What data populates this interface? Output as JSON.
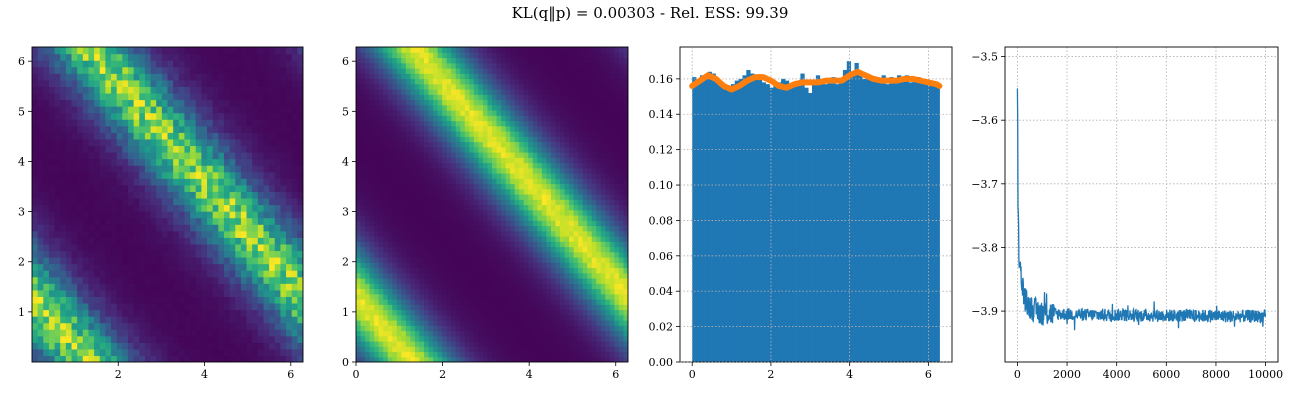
{
  "figure": {
    "title": "KL(q‖p) = 0.00303 - Rel. ESS: 99.39"
  },
  "colors": {
    "bar": "#1f77b4",
    "density": "#ff7f0e",
    "loss": "#1f77b4",
    "grid": "#b0b0b0",
    "colormap": "viridis"
  },
  "chart_data": [
    {
      "type": "heatmap",
      "description_of_pattern": "two diagonal ridges of high density",
      "xlim": [
        0,
        6.2832
      ],
      "ylim": [
        0,
        6.2832
      ],
      "xticks": [
        2,
        4,
        6
      ],
      "yticks": [
        1,
        2,
        3,
        4,
        5,
        6
      ],
      "bins": 48,
      "noisy": true,
      "colormap": "viridis"
    },
    {
      "type": "heatmap",
      "xlim": [
        0,
        6.2832
      ],
      "ylim": [
        0,
        6.2832
      ],
      "xticks": [
        0,
        2,
        4,
        6
      ],
      "yticks": [
        0,
        1,
        2,
        3,
        4,
        5,
        6
      ],
      "smooth": true,
      "colormap": "viridis"
    },
    {
      "type": "bar",
      "xlim": [
        -0.31,
        6.6
      ],
      "ylim": [
        0,
        0.178
      ],
      "xticks": [
        0,
        2,
        4,
        6
      ],
      "yticks": [
        0.0,
        0.02,
        0.04,
        0.06,
        0.08,
        0.1,
        0.12,
        0.14,
        0.16
      ],
      "ytick_labels": [
        "0.00",
        "0.02",
        "0.04",
        "0.06",
        "0.08",
        "0.10",
        "0.12",
        "0.14",
        "0.16"
      ],
      "bin_range": [
        0,
        6.2832
      ],
      "bar_values": [
        0.161,
        0.159,
        0.162,
        0.16,
        0.164,
        0.163,
        0.158,
        0.157,
        0.154,
        0.155,
        0.157,
        0.159,
        0.16,
        0.162,
        0.165,
        0.163,
        0.161,
        0.16,
        0.158,
        0.157,
        0.155,
        0.156,
        0.158,
        0.16,
        0.159,
        0.157,
        0.156,
        0.158,
        0.163,
        0.155,
        0.152,
        0.157,
        0.162,
        0.158,
        0.157,
        0.16,
        0.161,
        0.157,
        0.16,
        0.165,
        0.17,
        0.162,
        0.169,
        0.163,
        0.16,
        0.161,
        0.159,
        0.16,
        0.158,
        0.162,
        0.157,
        0.161,
        0.159,
        0.162,
        0.16,
        0.162,
        0.158,
        0.16,
        0.161,
        0.159,
        0.157,
        0.158,
        0.157,
        0.156
      ],
      "density_x": [
        0,
        0.2,
        0.4,
        0.6,
        0.8,
        1.0,
        1.2,
        1.4,
        1.6,
        1.8,
        2.0,
        2.2,
        2.4,
        2.6,
        2.8,
        3.0,
        3.2,
        3.4,
        3.6,
        3.8,
        4.0,
        4.2,
        4.4,
        4.6,
        4.8,
        5.0,
        5.2,
        5.4,
        5.6,
        5.8,
        6.0,
        6.2,
        6.28
      ],
      "density_y": [
        0.156,
        0.159,
        0.162,
        0.16,
        0.156,
        0.154,
        0.156,
        0.159,
        0.161,
        0.161,
        0.159,
        0.156,
        0.155,
        0.157,
        0.158,
        0.158,
        0.158,
        0.159,
        0.159,
        0.159,
        0.162,
        0.164,
        0.162,
        0.16,
        0.159,
        0.159,
        0.159,
        0.16,
        0.16,
        0.159,
        0.158,
        0.157,
        0.156
      ],
      "grid": true
    },
    {
      "type": "line",
      "xlim": [
        -500,
        10500
      ],
      "ylim": [
        -3.98,
        -3.485
      ],
      "xticks": [
        0,
        2000,
        4000,
        6000,
        8000,
        10000
      ],
      "yticks": [
        -3.9,
        -3.8,
        -3.7,
        -3.6,
        -3.5
      ],
      "ytick_labels": [
        "−3.9",
        "−3.8",
        "−3.7",
        "−3.6",
        "−3.5"
      ],
      "series": [
        {
          "x": [
            0,
            5,
            10,
            15,
            20,
            30,
            40,
            60,
            80,
            100,
            130,
            160,
            200,
            250,
            300,
            350,
            400,
            500,
            600,
            700,
            800,
            1000,
            1200,
            1500,
            2000,
            3000,
            4000,
            5000,
            6000,
            7000,
            8000,
            9000,
            10000
          ],
          "y": [
            -3.55,
            -3.51,
            -3.58,
            -3.66,
            -3.7,
            -3.74,
            -3.77,
            -3.8,
            -3.82,
            -3.83,
            -3.84,
            -3.85,
            -3.86,
            -3.87,
            -3.88,
            -3.885,
            -3.89,
            -3.893,
            -3.895,
            -3.898,
            -3.9,
            -3.902,
            -3.903,
            -3.904,
            -3.905,
            -3.906,
            -3.906,
            -3.907,
            -3.907,
            -3.907,
            -3.908,
            -3.908,
            -3.908
          ],
          "noise_band": 0.02
        }
      ],
      "grid": true
    }
  ]
}
